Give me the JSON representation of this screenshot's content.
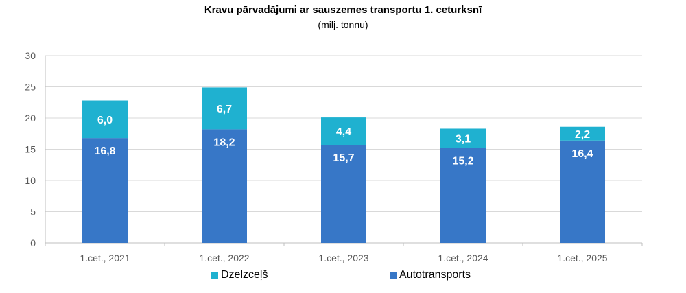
{
  "title": "Kravu pārvadājumi ar sauszemes transportu 1. ceturksnī",
  "subtitle": "(milj. tonnu)",
  "chart_data": {
    "type": "bar",
    "stacked": true,
    "categories": [
      "1.cet., 2021",
      "1.cet., 2022",
      "1.cet., 2023",
      "1.cet., 2024",
      "1.cet., 2025"
    ],
    "series": [
      {
        "name": "Autotransports",
        "values": [
          16.8,
          18.2,
          15.7,
          15.2,
          16.4
        ],
        "labels": [
          "16,8",
          "18,2",
          "15,7",
          "15,2",
          "16,4"
        ],
        "color": "#3777c7"
      },
      {
        "name": "Dzelzceļš",
        "values": [
          6.0,
          6.7,
          4.4,
          3.1,
          2.2
        ],
        "labels": [
          "6,0",
          "6,7",
          "4,4",
          "3,1",
          "2,2"
        ],
        "color": "#1fb1d0"
      }
    ],
    "ylim": [
      0,
      30
    ],
    "yticks": [
      "0",
      "5",
      "10",
      "15",
      "20",
      "25",
      "30"
    ],
    "grid": true,
    "legend_position": "bottom"
  }
}
